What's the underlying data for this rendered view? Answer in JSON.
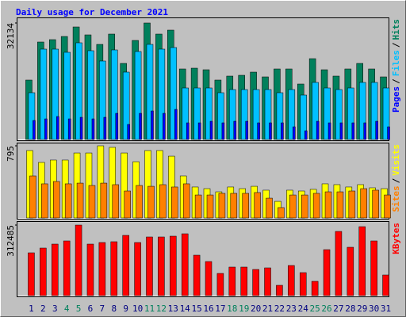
{
  "chart_data": [
    {
      "type": "bar",
      "title": "Daily usage for December 2021",
      "categories": [
        1,
        2,
        3,
        4,
        5,
        6,
        7,
        8,
        9,
        10,
        11,
        12,
        13,
        14,
        15,
        16,
        17,
        18,
        19,
        20,
        21,
        22,
        23,
        24,
        25,
        26,
        27,
        28,
        29,
        30,
        31
      ],
      "category_colors": [
        "#000080",
        "#000080",
        "#000080",
        "#00805c",
        "#00805c",
        "#000080",
        "#000080",
        "#000080",
        "#000080",
        "#000080",
        "#00805c",
        "#00805c",
        "#000080",
        "#000080",
        "#000080",
        "#000080",
        "#000080",
        "#00805c",
        "#00805c",
        "#000080",
        "#000080",
        "#000080",
        "#000080",
        "#000080",
        "#00805c",
        "#00805c",
        "#000080",
        "#000080",
        "#000080",
        "#000080",
        "#000080"
      ],
      "legend_separator": "/",
      "ylim": [
        0,
        32134
      ],
      "yticks": [
        32134
      ],
      "series": [
        {
          "name": "Hits",
          "color": "#00805c",
          "values": [
            16395,
            26888,
            27543,
            28418,
            31041,
            28855,
            26232,
            29074,
            20986,
            27325,
            32134,
            29074,
            30167,
            19455,
            19674,
            19237,
            16395,
            17488,
            17707,
            18581,
            17269,
            19455,
            19455,
            15302,
            22297,
            19237,
            17488,
            19455,
            20986,
            19455,
            17269
          ]
        },
        {
          "name": "Files",
          "color": "#00c0ff",
          "values": [
            12898,
            24921,
            24921,
            24046,
            26669,
            24484,
            21642,
            24702,
            18581,
            24265,
            26232,
            24921,
            25358,
            14209,
            14209,
            14209,
            12898,
            13772,
            13772,
            13772,
            13772,
            12898,
            13772,
            12242,
            15739,
            14209,
            13772,
            14209,
            15739,
            15739,
            14209
          ]
        },
        {
          "name": "Pages",
          "color": "#0000ff",
          "values": [
            5246,
            5684,
            6339,
            5684,
            6121,
            5684,
            6121,
            7214,
            4154,
            7214,
            7870,
            7214,
            8307,
            4591,
            4591,
            5028,
            4591,
            5028,
            5028,
            4591,
            4591,
            4591,
            3498,
            2405,
            5028,
            4591,
            4591,
            4591,
            4591,
            5028,
            3498
          ]
        }
      ]
    },
    {
      "type": "bar",
      "ylim": [
        0,
        795
      ],
      "yticks": [
        795
      ],
      "series": [
        {
          "name": "Visits",
          "color": "#ffff00",
          "values": [
            743,
            612,
            638,
            638,
            716,
            716,
            795,
            778,
            716,
            620,
            743,
            743,
            681,
            463,
            341,
            323,
            288,
            341,
            323,
            349,
            306,
            183,
            306,
            297,
            315,
            376,
            367,
            341,
            367,
            332,
            323
          ]
        },
        {
          "name": "Sites",
          "color": "#ff8000",
          "values": [
            463,
            376,
            402,
            376,
            384,
            358,
            384,
            367,
            297,
            358,
            349,
            367,
            341,
            376,
            253,
            253,
            271,
            271,
            271,
            280,
            218,
            114,
            253,
            253,
            271,
            288,
            288,
            297,
            323,
            306,
            253
          ]
        }
      ]
    },
    {
      "type": "bar",
      "ylim": [
        0,
        312485
      ],
      "yticks": [
        312485
      ],
      "series": [
        {
          "name": "KBytes",
          "color": "#ff0000",
          "values": [
            189597,
            210664,
            228218,
            242263,
            312485,
            228218,
            235240,
            238751,
            266840,
            235240,
            259817,
            259817,
            263330,
            273860,
            179063,
            150975,
            98310,
            126398,
            126398,
            115865,
            122887,
            45644,
            133420,
            101821,
            63199,
            203642,
            284396,
            214175,
            305463,
            242263,
            91287
          ]
        }
      ]
    }
  ]
}
